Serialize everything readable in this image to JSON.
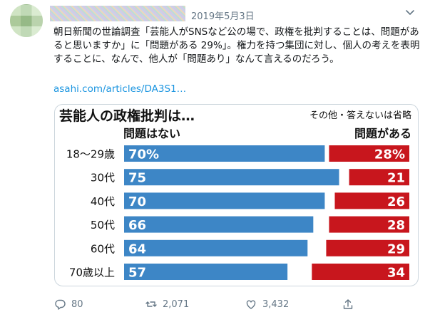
{
  "tweet": {
    "date": "2019年5月3日",
    "text": "朝日新聞の世論調査「芸能人がSNSなど公の場で、政権を批判することは、問題があると思いますか」に「問題がある 29%」。権力を持つ集団に対し、個人の考えを表明することに、なんで、他人が「問題あり」なんて言えるのだろう。",
    "link": "asahi.com/articles/DA3S1…",
    "icons": [
      "reply-icon",
      "retweet-icon",
      "like-icon",
      "share-icon",
      "chevron-down-icon"
    ],
    "stats": {
      "replies": "80",
      "retweets": "2,071",
      "likes": "3,432"
    }
  },
  "chart_data": {
    "type": "bar",
    "title": "芸能人の政権批判は…",
    "note": "その他・答えないは省略",
    "categories": [
      "18〜29歳",
      "30代",
      "40代",
      "50代",
      "60代",
      "70歳以上"
    ],
    "series": [
      {
        "name": "問題はない",
        "values": [
          70,
          75,
          70,
          66,
          64,
          57
        ],
        "labels": [
          "70%",
          "75",
          "70",
          "66",
          "64",
          "57"
        ],
        "color": "#3d86c6"
      },
      {
        "name": "問題がある",
        "values": [
          28,
          21,
          26,
          28,
          29,
          34
        ],
        "labels": [
          "28%",
          "21",
          "26",
          "28",
          "29",
          "34"
        ],
        "color": "#c8161d"
      }
    ]
  }
}
